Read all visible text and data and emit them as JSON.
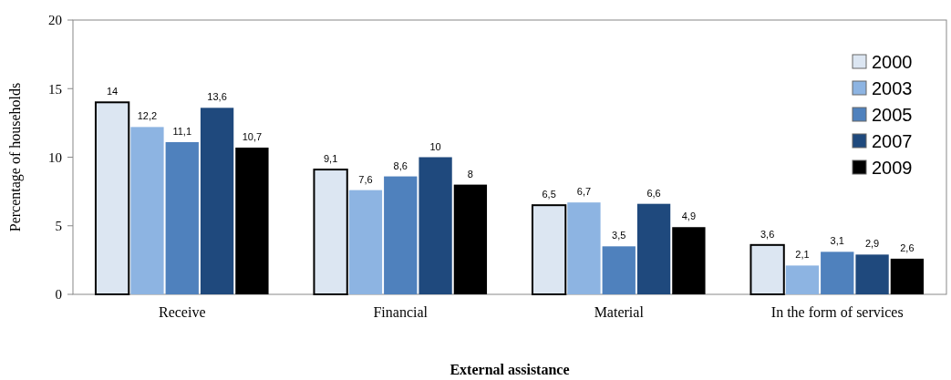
{
  "chart_data": {
    "type": "bar",
    "xlabel": "External assistance",
    "ylabel": "Percentage of households",
    "categories": [
      "Receive",
      "Financial",
      "Material",
      "In the form of services"
    ],
    "ylim": [
      0,
      20
    ],
    "yticks": [
      0,
      5,
      10,
      15,
      20
    ],
    "grid": false,
    "legend": "right",
    "series": [
      {
        "name": "2000",
        "color": "#dce6f2",
        "values": [
          14,
          9.1,
          6.5,
          3.6
        ],
        "value_labels": [
          "14",
          "9,1",
          "6,5",
          "3,6"
        ]
      },
      {
        "name": "2003",
        "color": "#8db4e2",
        "values": [
          12.2,
          7.6,
          6.7,
          2.1
        ],
        "value_labels": [
          "12,2",
          "7,6",
          "6,7",
          "2,1"
        ]
      },
      {
        "name": "2005",
        "color": "#4f81bd",
        "values": [
          11.1,
          8.6,
          3.5,
          3.1
        ],
        "value_labels": [
          "11,1",
          "8,6",
          "3,5",
          "3,1"
        ]
      },
      {
        "name": "2007",
        "color": "#1f497d",
        "values": [
          13.6,
          10,
          6.6,
          2.9
        ],
        "value_labels": [
          "13,6",
          "10",
          "6,6",
          "2,9"
        ]
      },
      {
        "name": "2009",
        "color": "#000000",
        "values": [
          10.7,
          8,
          4.9,
          2.6
        ],
        "value_labels": [
          "10,7",
          "8",
          "4,9",
          "2,6"
        ]
      }
    ]
  }
}
